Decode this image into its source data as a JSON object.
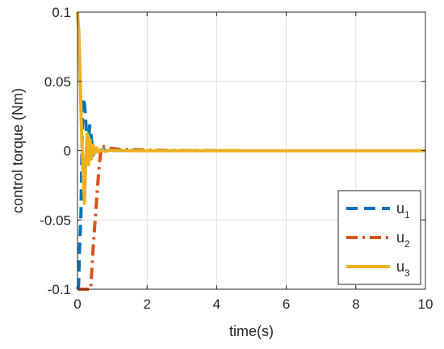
{
  "chart_data": {
    "type": "line",
    "title": "",
    "xlabel": "time(s)",
    "ylabel": "control torque (Nm)",
    "xlim": [
      0,
      10
    ],
    "ylim": [
      -0.1,
      0.1
    ],
    "xticks": [
      0,
      2,
      4,
      6,
      8,
      10
    ],
    "xtick_labels": [
      "0",
      "2",
      "4",
      "6",
      "8",
      "10"
    ],
    "yticks": [
      -0.1,
      -0.05,
      0,
      0.05,
      0.1
    ],
    "ytick_labels": [
      "-0.1",
      "-0.05",
      "0",
      "0.05",
      "0.1"
    ],
    "grid": true,
    "legend_position": "bottom-right",
    "series": [
      {
        "name": "u",
        "subscript": "1",
        "color": "#0072BD",
        "style": "dashed",
        "x": [
          0,
          0.03,
          0.06,
          0.1,
          0.14,
          0.18,
          0.22,
          0.26,
          0.3,
          0.35,
          0.4,
          0.45,
          0.5,
          0.55,
          0.6,
          0.7,
          0.8,
          0.9,
          1.0,
          1.2,
          1.5,
          2,
          3,
          4,
          5,
          6,
          7,
          8,
          9,
          10
        ],
        "y": [
          -0.1,
          -0.098,
          -0.07,
          -0.045,
          0.02,
          0.038,
          0.028,
          0.012,
          0.004,
          0.018,
          0.009,
          -0.003,
          0.004,
          0.002,
          -0.001,
          0.001,
          0.0005,
          -0.0005,
          0.0003,
          0.0002,
          0.0001,
          0,
          0,
          0,
          0,
          0,
          0,
          0,
          0,
          0
        ]
      },
      {
        "name": "u",
        "subscript": "2",
        "color": "#D95319",
        "style": "dashdot",
        "x": [
          0,
          0.05,
          0.1,
          0.2,
          0.3,
          0.38,
          0.45,
          0.55,
          0.62,
          0.68,
          0.75,
          0.85,
          1.0,
          1.2,
          1.5,
          2,
          2.5,
          3,
          4,
          5,
          6,
          7,
          8,
          9,
          10
        ],
        "y": [
          -0.1,
          -0.1,
          -0.1,
          -0.1,
          -0.1,
          -0.1,
          -0.07,
          -0.035,
          -0.012,
          0.002,
          0.003,
          0.002,
          0.0015,
          0.001,
          0.0008,
          0.0005,
          0.0003,
          0.0002,
          0.0001,
          0,
          0,
          0,
          0,
          0,
          0
        ]
      },
      {
        "name": "u",
        "subscript": "3",
        "color": "#EDB120",
        "style": "solid",
        "x": [
          0,
          0.04,
          0.08,
          0.12,
          0.16,
          0.2,
          0.24,
          0.28,
          0.32,
          0.36,
          0.4,
          0.45,
          0.5,
          0.55,
          0.6,
          0.7,
          0.8,
          0.9,
          1.0,
          1.2,
          1.5,
          2,
          3,
          4,
          5,
          6,
          7,
          8,
          9,
          10
        ],
        "y": [
          0.1,
          0.085,
          0.05,
          0.01,
          -0.015,
          -0.038,
          -0.005,
          0.012,
          -0.01,
          0.008,
          -0.006,
          0.004,
          -0.002,
          0.002,
          -0.001,
          0.0008,
          -0.0005,
          0.0003,
          0.0002,
          0.0001,
          0,
          0,
          0,
          0,
          0,
          0,
          0,
          0,
          0,
          0
        ]
      }
    ]
  }
}
